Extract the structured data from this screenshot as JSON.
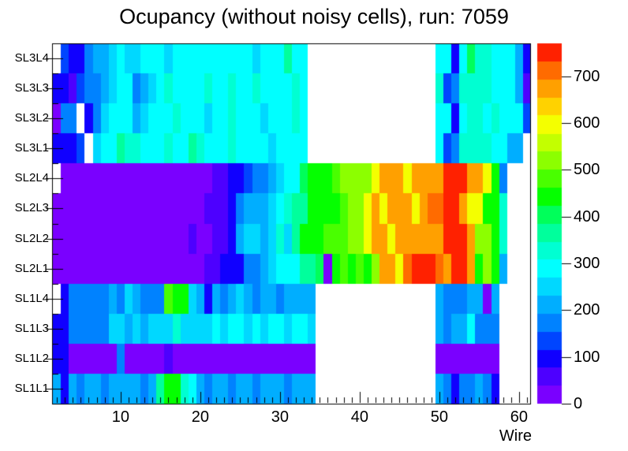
{
  "title": "Ocupancy (without noisy cells), run: 7059",
  "chart_data": {
    "type": "heatmap",
    "title": "Ocupancy (without noisy cells), run: 7059",
    "xlabel": "Wire",
    "ylabel": "",
    "x_ticks": [
      10,
      20,
      30,
      40,
      50,
      60
    ],
    "x_range": [
      1.4,
      61.4
    ],
    "z_ticks": [
      0,
      100,
      200,
      300,
      400,
      500,
      600,
      700
    ],
    "z_range": [
      0,
      770
    ],
    "grid": false,
    "legend_position": "right-colorbar",
    "palette_stops": [
      [
        0,
        "#7A00FF"
      ],
      [
        38,
        "#4D00FF"
      ],
      [
        77,
        "#1000FF"
      ],
      [
        115,
        "#0045FF"
      ],
      [
        154,
        "#0082FF"
      ],
      [
        192,
        "#00AEFF"
      ],
      [
        231,
        "#00D8FF"
      ],
      [
        269,
        "#00FFFF"
      ],
      [
        308,
        "#00FFD2"
      ],
      [
        346,
        "#00FF9C"
      ],
      [
        385,
        "#00FF5A"
      ],
      [
        423,
        "#05FF00"
      ],
      [
        462,
        "#49FF00"
      ],
      [
        500,
        "#8CFF00"
      ],
      [
        539,
        "#C3FF00"
      ],
      [
        577,
        "#F4FF00"
      ],
      [
        616,
        "#FFD200"
      ],
      [
        654,
        "#FFA000"
      ],
      [
        693,
        "#FF6B00"
      ],
      [
        731,
        "#FF2100"
      ]
    ],
    "wire_first": 2,
    "rows": [
      {
        "label": "SL3L4",
        "values": [
          null,
          120,
          80,
          80,
          160,
          215,
          215,
          240,
          270,
          250,
          240,
          270,
          270,
          270,
          240,
          270,
          270,
          300,
          300,
          270,
          300,
          300,
          270,
          300,
          300,
          240,
          270,
          300,
          270,
          360,
          270,
          270,
          null,
          null,
          null,
          null,
          null,
          null,
          null,
          null,
          null,
          null,
          null,
          null,
          null,
          null,
          null,
          null,
          270,
          270,
          110,
          280,
          390,
          320,
          320,
          270,
          270,
          270,
          215,
          110
        ]
      },
      {
        "label": "SL3L3",
        "values": [
          110,
          110,
          70,
          120,
          160,
          180,
          215,
          240,
          270,
          270,
          180,
          215,
          240,
          270,
          320,
          270,
          270,
          300,
          270,
          320,
          270,
          270,
          320,
          270,
          270,
          320,
          270,
          300,
          270,
          270,
          330,
          270,
          null,
          null,
          null,
          null,
          null,
          null,
          null,
          null,
          null,
          null,
          null,
          null,
          null,
          null,
          null,
          null,
          330,
          120,
          180,
          330,
          320,
          320,
          320,
          270,
          270,
          270,
          215,
          70
        ]
      },
      {
        "label": "SL3L2",
        "values": [
          30,
          160,
          160,
          null,
          110,
          180,
          240,
          270,
          300,
          270,
          215,
          240,
          270,
          270,
          270,
          330,
          270,
          270,
          270,
          240,
          270,
          270,
          330,
          270,
          270,
          270,
          240,
          270,
          270,
          270,
          330,
          270,
          null,
          null,
          null,
          null,
          null,
          null,
          null,
          null,
          null,
          null,
          null,
          null,
          null,
          null,
          null,
          null,
          270,
          270,
          110,
          270,
          330,
          330,
          270,
          330,
          270,
          270,
          270,
          130
        ]
      },
      {
        "label": "SL3L1",
        "values": [
          110,
          110,
          110,
          120,
          null,
          240,
          270,
          270,
          360,
          330,
          330,
          270,
          270,
          270,
          330,
          270,
          270,
          360,
          330,
          270,
          270,
          270,
          330,
          270,
          270,
          270,
          270,
          240,
          270,
          270,
          270,
          270,
          null,
          null,
          null,
          null,
          null,
          null,
          null,
          null,
          null,
          null,
          null,
          null,
          null,
          null,
          null,
          null,
          270,
          120,
          180,
          330,
          330,
          330,
          330,
          270,
          270,
          215,
          215,
          null
        ]
      },
      {
        "label": "SL2L4",
        "values": [
          null,
          30,
          30,
          30,
          30,
          30,
          30,
          30,
          30,
          30,
          30,
          30,
          30,
          30,
          30,
          30,
          30,
          30,
          30,
          30,
          55,
          55,
          110,
          110,
          120,
          160,
          160,
          215,
          240,
          270,
          270,
          420,
          430,
          430,
          430,
          480,
          510,
          510,
          520,
          520,
          590,
          670,
          670,
          670,
          590,
          680,
          680,
          680,
          690,
          755,
          760,
          750,
          690,
          680,
          590,
          430,
          180,
          null,
          null,
          null
        ]
      },
      {
        "label": "SL2L3",
        "values": [
          30,
          30,
          30,
          30,
          30,
          30,
          30,
          30,
          30,
          30,
          30,
          30,
          30,
          30,
          30,
          30,
          30,
          30,
          30,
          55,
          55,
          55,
          110,
          160,
          215,
          215,
          215,
          240,
          270,
          330,
          360,
          360,
          430,
          430,
          430,
          440,
          480,
          510,
          510,
          590,
          670,
          590,
          670,
          670,
          680,
          590,
          680,
          700,
          730,
          755,
          750,
          680,
          590,
          590,
          430,
          430,
          330,
          null,
          null,
          null
        ]
      },
      {
        "label": "SL2L2",
        "values": [
          30,
          30,
          30,
          30,
          30,
          30,
          30,
          30,
          30,
          30,
          30,
          30,
          30,
          30,
          30,
          30,
          30,
          70,
          30,
          30,
          55,
          55,
          110,
          215,
          240,
          240,
          215,
          240,
          330,
          240,
          360,
          430,
          430,
          440,
          480,
          480,
          480,
          510,
          510,
          590,
          670,
          670,
          590,
          670,
          680,
          680,
          680,
          690,
          690,
          750,
          755,
          750,
          680,
          530,
          530,
          440,
          330,
          null,
          null,
          null
        ]
      },
      {
        "label": "SL2L1",
        "values": [
          30,
          30,
          30,
          30,
          30,
          30,
          30,
          30,
          30,
          30,
          30,
          30,
          30,
          30,
          30,
          30,
          30,
          30,
          30,
          55,
          55,
          90,
          110,
          110,
          160,
          180,
          215,
          240,
          270,
          270,
          270,
          370,
          370,
          400,
          30,
          430,
          480,
          430,
          480,
          430,
          510,
          670,
          670,
          590,
          700,
          750,
          755,
          755,
          700,
          690,
          750,
          750,
          690,
          430,
          510,
          430,
          200,
          null,
          null,
          null
        ]
      },
      {
        "label": "SL1L4",
        "values": [
          null,
          90,
          180,
          180,
          180,
          180,
          180,
          215,
          180,
          250,
          215,
          180,
          180,
          180,
          480,
          430,
          430,
          250,
          215,
          90,
          215,
          180,
          215,
          240,
          215,
          180,
          215,
          215,
          180,
          215,
          215,
          215,
          215,
          null,
          null,
          null,
          null,
          null,
          null,
          null,
          null,
          null,
          null,
          null,
          null,
          null,
          null,
          null,
          215,
          180,
          180,
          180,
          215,
          215,
          30,
          215,
          null,
          null,
          null,
          null
        ]
      },
      {
        "label": "SL1L3",
        "values": [
          110,
          110,
          180,
          180,
          180,
          180,
          180,
          240,
          240,
          215,
          240,
          215,
          240,
          240,
          240,
          330,
          250,
          250,
          250,
          240,
          270,
          240,
          270,
          270,
          240,
          270,
          240,
          270,
          270,
          240,
          270,
          270,
          240,
          null,
          null,
          null,
          null,
          null,
          null,
          null,
          null,
          null,
          null,
          null,
          null,
          null,
          null,
          null,
          215,
          180,
          215,
          215,
          270,
          180,
          180,
          180,
          null,
          null,
          null,
          null
        ]
      },
      {
        "label": "SL1L2",
        "values": [
          110,
          110,
          30,
          30,
          30,
          30,
          30,
          30,
          160,
          30,
          30,
          30,
          30,
          30,
          70,
          30,
          30,
          30,
          30,
          30,
          30,
          30,
          30,
          30,
          30,
          30,
          30,
          30,
          30,
          30,
          30,
          30,
          30,
          null,
          null,
          null,
          null,
          null,
          null,
          null,
          null,
          null,
          null,
          null,
          null,
          null,
          null,
          null,
          30,
          30,
          30,
          30,
          30,
          30,
          30,
          30,
          null,
          null,
          null,
          null
        ]
      },
      {
        "label": "SL1L1",
        "values": [
          215,
          110,
          215,
          180,
          215,
          215,
          180,
          215,
          215,
          215,
          215,
          180,
          215,
          360,
          430,
          430,
          330,
          270,
          215,
          160,
          215,
          215,
          180,
          215,
          215,
          180,
          215,
          215,
          215,
          180,
          215,
          215,
          215,
          null,
          null,
          null,
          null,
          null,
          null,
          null,
          null,
          null,
          null,
          null,
          null,
          null,
          null,
          null,
          215,
          180,
          110,
          180,
          180,
          215,
          180,
          110,
          null,
          null,
          null,
          null
        ]
      }
    ]
  }
}
